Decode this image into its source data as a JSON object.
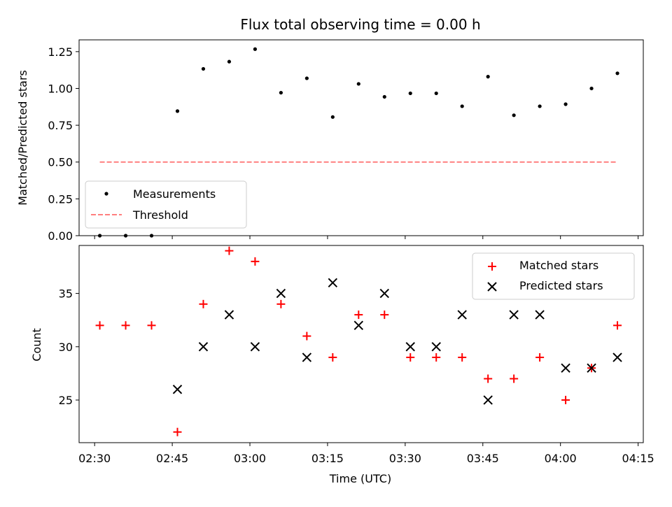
{
  "chart_data": [
    {
      "type": "scatter",
      "title": "Flux total observing time = 0.00 h",
      "xlabel": "",
      "ylabel": "Matched/Predicted stars",
      "xlim": [
        "02:27",
        "04:16"
      ],
      "ylim": [
        0,
        1.33
      ],
      "yticks": [
        0.0,
        0.25,
        0.5,
        0.75,
        1.0,
        1.25
      ],
      "ytick_labels": [
        "0.00",
        "0.25",
        "0.50",
        "0.75",
        "1.00",
        "1.25"
      ],
      "legend": {
        "position": "lower-left"
      },
      "grid": false,
      "series": [
        {
          "name": "Measurements",
          "marker": "dot",
          "color": "#000000",
          "x": [
            "02:31",
            "02:36",
            "02:41",
            "02:46",
            "02:51",
            "02:56",
            "03:01",
            "03:06",
            "03:11",
            "03:16",
            "03:21",
            "03:26",
            "03:31",
            "03:36",
            "03:41",
            "03:46",
            "03:51",
            "03:56",
            "04:01",
            "04:06",
            "04:11"
          ],
          "y": [
            0.0,
            0.0,
            0.0,
            0.846,
            1.133,
            1.182,
            1.267,
            0.971,
            1.069,
            0.806,
            1.031,
            0.943,
            0.967,
            0.967,
            0.879,
            1.08,
            0.818,
            0.879,
            0.893,
            1.0,
            1.103
          ]
        },
        {
          "name": "Threshold",
          "line_style": "dashed",
          "color": "#ff7f7f",
          "x": [
            "02:31",
            "04:11"
          ],
          "y": [
            0.5,
            0.5
          ]
        }
      ]
    },
    {
      "type": "scatter",
      "title": "",
      "xlabel": "Time (UTC)",
      "ylabel": "Count",
      "xlim": [
        "02:27",
        "04:16"
      ],
      "ylim": [
        21,
        39.5
      ],
      "yticks": [
        25,
        30,
        35
      ],
      "ytick_labels": [
        "25",
        "30",
        "35"
      ],
      "xtick_labels": [
        "02:30",
        "02:45",
        "03:00",
        "03:15",
        "03:30",
        "03:45",
        "04:00",
        "04:15"
      ],
      "legend": {
        "position": "top-right"
      },
      "grid": false,
      "series": [
        {
          "name": "Matched stars",
          "marker": "plus",
          "color": "#ff0000",
          "x": [
            "02:31",
            "02:36",
            "02:41",
            "02:46",
            "02:51",
            "02:56",
            "03:01",
            "03:06",
            "03:11",
            "03:16",
            "03:21",
            "03:26",
            "03:31",
            "03:36",
            "03:41",
            "03:46",
            "03:51",
            "03:56",
            "04:01",
            "04:06",
            "04:11"
          ],
          "y": [
            32,
            32,
            32,
            22,
            34,
            39,
            38,
            34,
            31,
            29,
            33,
            33,
            29,
            29,
            29,
            27,
            27,
            29,
            25,
            28,
            32
          ]
        },
        {
          "name": "Predicted stars",
          "marker": "x",
          "color": "#000000",
          "x": [
            "02:46",
            "02:51",
            "02:56",
            "03:01",
            "03:06",
            "03:11",
            "03:16",
            "03:21",
            "03:26",
            "03:31",
            "03:36",
            "03:41",
            "03:46",
            "03:51",
            "03:56",
            "04:01",
            "04:06",
            "04:11"
          ],
          "y": [
            26,
            30,
            33,
            30,
            35,
            29,
            36,
            32,
            35,
            30,
            30,
            33,
            25,
            33,
            33,
            28,
            28,
            29
          ]
        }
      ]
    }
  ]
}
